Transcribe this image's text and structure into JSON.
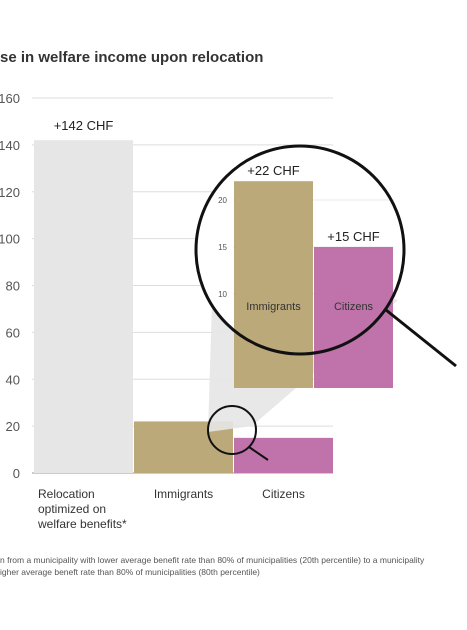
{
  "chart_data": {
    "type": "bar",
    "title": "se in welfare income upon relocation",
    "categories": [
      {
        "lines": [
          "Relocation",
          "optimized on",
          "welfare benefits*"
        ]
      },
      {
        "lines": [
          "Immigrants"
        ]
      },
      {
        "lines": [
          "Citizens"
        ]
      }
    ],
    "values": [
      142,
      22,
      15
    ],
    "data_labels": [
      "+142 CHF",
      "+22 CHF",
      "+15 CHF"
    ],
    "colors": [
      "#e6e6e6",
      "#bca97a",
      "#bf73aa"
    ],
    "yticks": [
      "160",
      "140",
      "120",
      "100",
      "80",
      "60",
      "40",
      "20",
      "0"
    ],
    "ylim": [
      0,
      160
    ],
    "grid": true,
    "zoom_inset": {
      "categories": [
        "Immigrants",
        "Citizens"
      ],
      "values": [
        22,
        15
      ],
      "data_labels": [
        "+22 CHF",
        "+15 CHF"
      ],
      "yticks": [
        "20",
        "15",
        "10"
      ]
    }
  },
  "footnote": [
    "n from a municipality with lower average benefit rate than 80% of municipalities (20th percentile) to a municipality",
    "igher average beneft rate than 80% of municipalities (80th percentile)"
  ]
}
